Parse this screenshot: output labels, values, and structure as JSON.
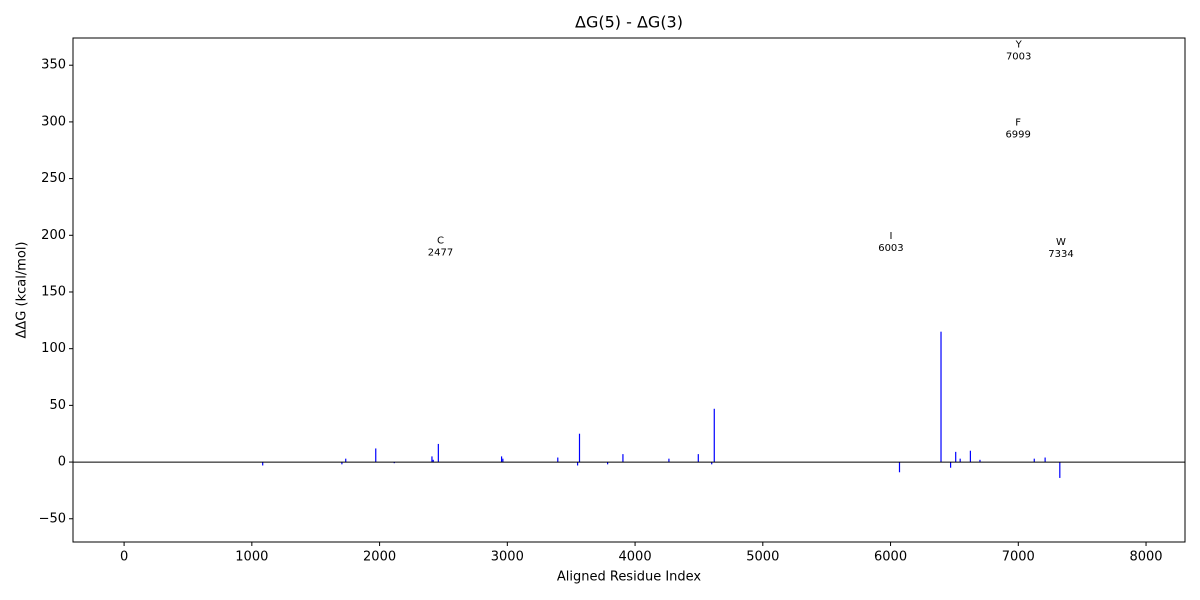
{
  "chart_data": {
    "type": "bar",
    "title": "ΔG(5) - ΔG(3)",
    "xlabel": "Aligned Residue Index",
    "ylabel": "ΔΔG (kcal/mol)",
    "x": [
      1085,
      1705,
      1735,
      1970,
      2115,
      2410,
      2420,
      2460,
      2955,
      2965,
      3395,
      3550,
      3565,
      3785,
      3905,
      4265,
      4495,
      4600,
      4620,
      6070,
      6395,
      6470,
      6510,
      6545,
      6625,
      6700,
      7125,
      7210,
      7325
    ],
    "values": [
      -3,
      -2,
      3,
      12,
      -1,
      5,
      2,
      16,
      5,
      3,
      4,
      -3,
      25,
      -2,
      7,
      3,
      7,
      -2,
      47,
      -9,
      115,
      -5,
      9,
      3,
      10,
      2,
      3,
      4,
      -14
    ],
    "color": "#0000ff",
    "axhline": 0,
    "xlim": [
      -400,
      8305
    ],
    "ylim": [
      -70.5,
      374
    ],
    "xticks": [
      0,
      1000,
      2000,
      3000,
      4000,
      5000,
      6000,
      7000,
      8000
    ],
    "yticks": [
      {
        "value": -50,
        "label": "−50"
      },
      0,
      50,
      100,
      150,
      200,
      250,
      300,
      350
    ],
    "annotations": [
      {
        "text": "C",
        "x": 2477,
        "y": 190
      },
      {
        "text": "I",
        "x": 6003,
        "y": 194
      },
      {
        "text": "Y",
        "x": 7003,
        "y": 363
      },
      {
        "text": "F",
        "x": 6999,
        "y": 294
      },
      {
        "text": "W",
        "x": 7334,
        "y": 189
      }
    ]
  }
}
